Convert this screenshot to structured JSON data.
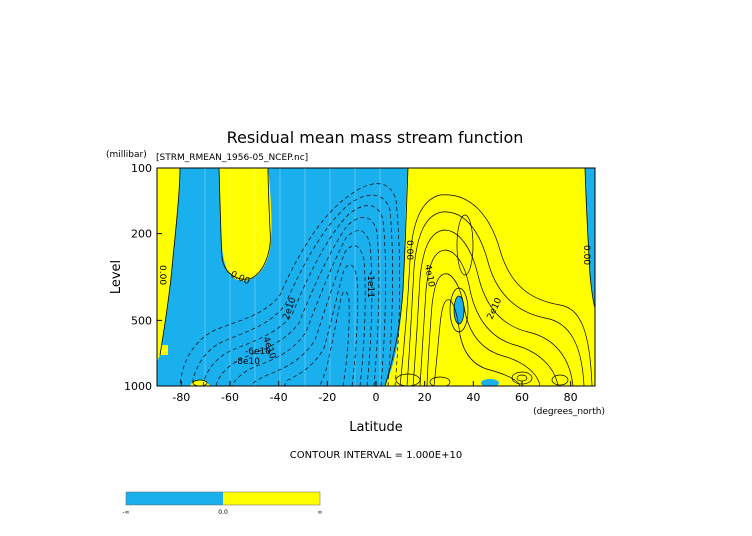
{
  "chart_data": {
    "type": "contour",
    "title": "Residual mean mass stream function",
    "subtitle": "[STRM_RMEAN_1956-05_NCEP.nc]",
    "ylabel": "Level",
    "yunits": "(millibar)",
    "xlabel": "Latitude",
    "xunits": "(degrees_north)",
    "x_ticks": [
      "-80",
      "-60",
      "-40",
      "-20",
      "0",
      "20",
      "40",
      "60",
      "80"
    ],
    "x_tick_values": [
      -80,
      -60,
      -40,
      -20,
      0,
      20,
      40,
      60,
      80
    ],
    "y_ticks": [
      "100",
      "200",
      "500",
      "1000"
    ],
    "y_tick_values": [
      100,
      200,
      500,
      1000
    ],
    "xlim": [
      -90,
      90
    ],
    "ylim": [
      1000,
      100
    ],
    "y_scale": "log",
    "contour_interval_text": "CONTOUR INTERVAL = 1.000E+10",
    "contour_labels": [
      "0.00",
      "0.00",
      "0.00",
      "2e10",
      "4e10",
      "-6e10",
      "-8e10",
      "-1e11",
      "4e10",
      "2e10",
      "0.00"
    ],
    "colorbar": {
      "labels": [
        "-∞",
        "0.0",
        "∞"
      ],
      "colors": [
        "#1ab0ee",
        "#ffff00"
      ]
    },
    "colors": {
      "negative": "#1ab0ee",
      "positive": "#ffff00"
    }
  }
}
